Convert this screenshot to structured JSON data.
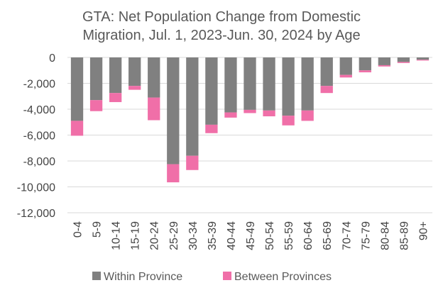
{
  "chart_data": {
    "type": "bar",
    "stacked": true,
    "title_lines": [
      "GTA: Net Population Change from Domestic",
      "Migration, Jul. 1, 2023-Jun. 30, 2024 by Age"
    ],
    "categories": [
      "0-4",
      "5-9",
      "10-14",
      "15-19",
      "20-24",
      "25-29",
      "30-34",
      "35-39",
      "40-44",
      "45-49",
      "50-54",
      "55-59",
      "60-64",
      "65-69",
      "70-74",
      "75-79",
      "80-84",
      "85-89",
      "90+"
    ],
    "series": [
      {
        "name": "Within Province",
        "color": "#808080",
        "values": [
          -4900,
          -3300,
          -2750,
          -2200,
          -3100,
          -8250,
          -7600,
          -5200,
          -4250,
          -4050,
          -4100,
          -4500,
          -4100,
          -2200,
          -1350,
          -1000,
          -600,
          -350,
          -180
        ]
      },
      {
        "name": "Between Provinces",
        "color": "#f06fa8",
        "values": [
          -1150,
          -850,
          -700,
          -300,
          -1750,
          -1400,
          -1100,
          -650,
          -400,
          -250,
          -450,
          -750,
          -800,
          -550,
          -200,
          -150,
          -100,
          -80,
          -60
        ]
      }
    ],
    "y_ticks": [
      "0",
      "-2,000",
      "-4,000",
      "-6,000",
      "-8,000",
      "-10,000",
      "-12,000"
    ],
    "ylim": [
      -12000,
      0
    ],
    "grid": true,
    "legend_position": "bottom"
  }
}
